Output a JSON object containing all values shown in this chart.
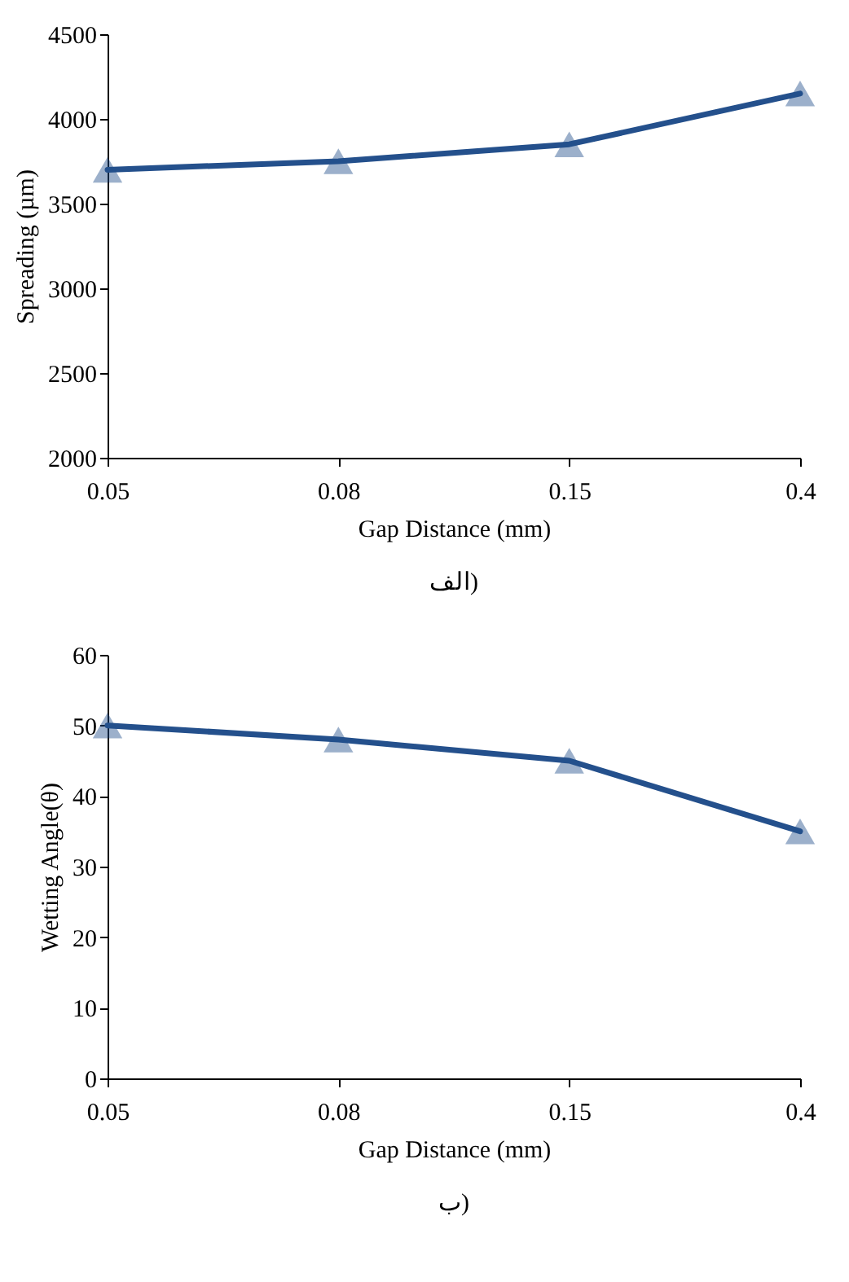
{
  "chart_data": [
    {
      "type": "line",
      "xlabel": "Gap Distance (mm)",
      "ylabel": "Spreading (µm)",
      "categories": [
        "0.05",
        "0.08",
        "0.15",
        "0.4"
      ],
      "series": [
        {
          "color": "#24508c",
          "values": [
            3700,
            3750,
            3850,
            4150
          ]
        }
      ],
      "ylim": [
        2000,
        4500
      ],
      "yticks": [
        2000,
        2500,
        3000,
        3500,
        4000,
        4500
      ],
      "marker": "triangle",
      "line_style": "solid",
      "annotations": [
        "الف)"
      ]
    },
    {
      "type": "line",
      "xlabel": "Gap Distance (mm)",
      "ylabel": "Wetting Angle(θ)",
      "categories": [
        "0.05",
        "0.08",
        "0.15",
        "0.4"
      ],
      "series": [
        {
          "color": "#24508c",
          "values": [
            50,
            48,
            45,
            35
          ]
        }
      ],
      "ylim": [
        0,
        60
      ],
      "yticks": [
        0,
        10,
        20,
        30,
        40,
        50,
        60
      ],
      "marker": "triangle",
      "line_style": "solid",
      "annotations": [
        "ب)"
      ]
    }
  ]
}
